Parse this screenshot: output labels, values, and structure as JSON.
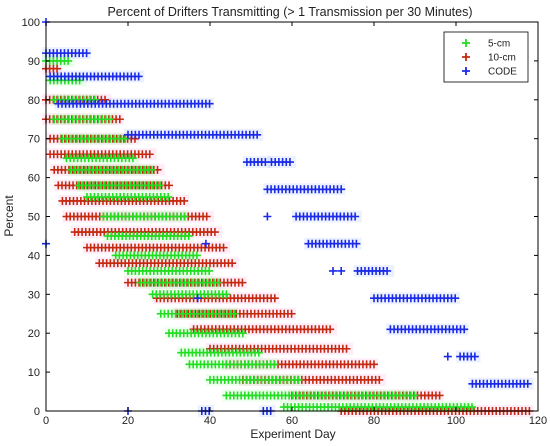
{
  "chart_data": {
    "type": "scatter",
    "title": "Percent of Drifters Transmitting (> 1 Transmission per 30 Minutes)",
    "xlabel": "Experiment Day",
    "ylabel": "Percent",
    "xlim": [
      0,
      120
    ],
    "ylim": [
      0,
      100
    ],
    "xticks": [
      0,
      20,
      40,
      60,
      80,
      100,
      120
    ],
    "yticks": [
      0,
      10,
      20,
      30,
      40,
      50,
      60,
      70,
      80,
      90,
      100
    ],
    "grid": false,
    "legend_position": "top-right",
    "marker": "plus",
    "series": [
      {
        "name": "5-cm",
        "color": "#22dd22",
        "runs": [
          {
            "x": [
              0,
              6
            ],
            "y": 90
          },
          {
            "x": [
              1,
              9
            ],
            "y": 85
          },
          {
            "x": [
              2,
              12
            ],
            "y": 80
          },
          {
            "x": [
              2,
              16
            ],
            "y": 75
          },
          {
            "x": [
              4,
              20
            ],
            "y": 70
          },
          {
            "x": [
              5,
              22
            ],
            "y": 65
          },
          {
            "x": [
              6,
              26
            ],
            "y": 62
          },
          {
            "x": [
              8,
              28
            ],
            "y": 58
          },
          {
            "x": [
              10,
              30
            ],
            "y": 55
          },
          {
            "x": [
              14,
              34
            ],
            "y": 50
          },
          {
            "x": [
              15,
              35
            ],
            "y": 45
          },
          {
            "x": [
              17,
              37
            ],
            "y": 40
          },
          {
            "x": [
              20,
              40
            ],
            "y": 36
          },
          {
            "x": [
              23,
              42
            ],
            "y": 33
          },
          {
            "x": [
              26,
              44
            ],
            "y": 30
          },
          {
            "x": [
              28,
              46
            ],
            "y": 25
          },
          {
            "x": [
              30,
              48
            ],
            "y": 20
          },
          {
            "x": [
              33,
              52
            ],
            "y": 15
          },
          {
            "x": [
              35,
              56
            ],
            "y": 12
          },
          {
            "x": [
              40,
              62
            ],
            "y": 8
          },
          {
            "x": [
              44,
              90
            ],
            "y": 4
          },
          {
            "x": [
              58,
              104
            ],
            "y": 1
          }
        ]
      },
      {
        "name": "10-cm",
        "color": "#c42a10",
        "runs": [
          {
            "x": [
              0,
              3
            ],
            "y": 88
          },
          {
            "x": [
              0,
              15
            ],
            "y": 80
          },
          {
            "x": [
              0,
              18
            ],
            "y": 75
          },
          {
            "x": [
              1,
              22
            ],
            "y": 70
          },
          {
            "x": [
              1,
              26
            ],
            "y": 66
          },
          {
            "x": [
              2,
              28
            ],
            "y": 62
          },
          {
            "x": [
              3,
              30
            ],
            "y": 58
          },
          {
            "x": [
              4,
              34
            ],
            "y": 54
          },
          {
            "x": [
              5,
              40
            ],
            "y": 50
          },
          {
            "x": [
              7,
              42
            ],
            "y": 46
          },
          {
            "x": [
              10,
              44
            ],
            "y": 42
          },
          {
            "x": [
              13,
              46
            ],
            "y": 38
          },
          {
            "x": [
              20,
              48
            ],
            "y": 33
          },
          {
            "x": [
              27,
              56
            ],
            "y": 29
          },
          {
            "x": [
              32,
              60
            ],
            "y": 25
          },
          {
            "x": [
              36,
              70
            ],
            "y": 21
          },
          {
            "x": [
              40,
              74
            ],
            "y": 16
          },
          {
            "x": [
              44,
              80
            ],
            "y": 12
          },
          {
            "x": [
              48,
              82
            ],
            "y": 8
          },
          {
            "x": [
              60,
              96
            ],
            "y": 4
          },
          {
            "x": [
              72,
              118
            ],
            "y": 0
          }
        ]
      },
      {
        "name": "CODE",
        "color": "#1a2ae8",
        "runs": [
          {
            "x": [
              0,
              10
            ],
            "y": 92
          },
          {
            "x": [
              1,
              23
            ],
            "y": 86
          },
          {
            "x": [
              3,
              40
            ],
            "y": 79
          },
          {
            "x": [
              20,
              52
            ],
            "y": 71
          },
          {
            "x": [
              49,
              54
            ],
            "y": 64
          },
          {
            "x": [
              55,
              60
            ],
            "y": 64
          },
          {
            "x": [
              54,
              72
            ],
            "y": 57
          },
          {
            "x": [
              61,
              76
            ],
            "y": 50
          },
          {
            "x": [
              64,
              76
            ],
            "y": 43
          },
          {
            "x": [
              76,
              84
            ],
            "y": 36
          },
          {
            "x": [
              80,
              100
            ],
            "y": 29
          },
          {
            "x": [
              84,
              102
            ],
            "y": 21
          },
          {
            "x": [
              101,
              105
            ],
            "y": 14
          },
          {
            "x": [
              104,
              118
            ],
            "y": 7
          },
          {
            "x": [
              38,
              40
            ],
            "y": 0
          },
          {
            "x": [
              53,
              55
            ],
            "y": 0
          }
        ],
        "points": [
          {
            "x": 0,
            "y": 100
          },
          {
            "x": 0,
            "y": 43
          },
          {
            "x": 20,
            "y": 0
          },
          {
            "x": 39,
            "y": 43
          },
          {
            "x": 37,
            "y": 29
          },
          {
            "x": 54,
            "y": 50
          },
          {
            "x": 70,
            "y": 36
          },
          {
            "x": 72,
            "y": 36
          },
          {
            "x": 98,
            "y": 14
          }
        ]
      }
    ]
  }
}
